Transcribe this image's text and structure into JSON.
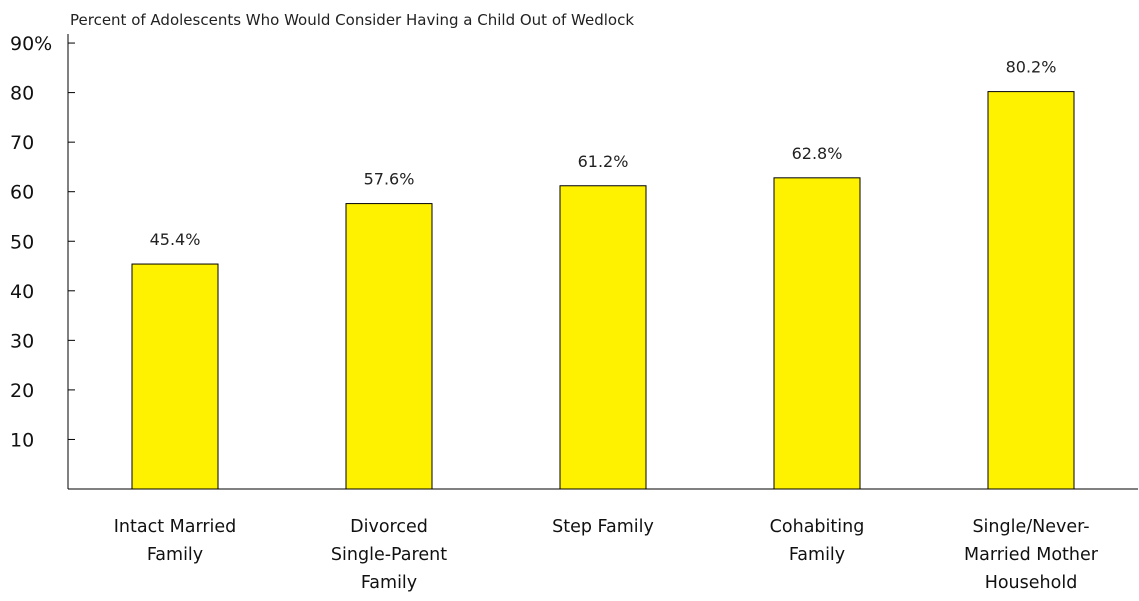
{
  "chart_data": {
    "type": "bar",
    "title": "Percent of Adolescents Who Would Consider Having a Child Out of Wedlock",
    "categories": [
      [
        "Intact Married",
        "Family"
      ],
      [
        "Divorced",
        "Single-Parent",
        "Family"
      ],
      [
        "Step Family"
      ],
      [
        "Cohabiting",
        "Family"
      ],
      [
        "Single/Never-",
        "Married Mother",
        "Household"
      ]
    ],
    "values": [
      45.4,
      57.6,
      61.2,
      62.8,
      80.2
    ],
    "data_labels": [
      "45.4%",
      "57.6%",
      "61.2%",
      "62.8%",
      "80.2%"
    ],
    "yticks": [
      {
        "value": 10,
        "label": "10"
      },
      {
        "value": 20,
        "label": "20"
      },
      {
        "value": 30,
        "label": "30"
      },
      {
        "value": 40,
        "label": "40"
      },
      {
        "value": 50,
        "label": "50"
      },
      {
        "value": 60,
        "label": "60"
      },
      {
        "value": 70,
        "label": "70"
      },
      {
        "value": 80,
        "label": "80"
      },
      {
        "value": 90,
        "label": "90%"
      }
    ],
    "ylim": [
      0,
      90
    ],
    "grid": false,
    "colors": {
      "bar": "#FFF200",
      "axis": "#000000"
    }
  }
}
